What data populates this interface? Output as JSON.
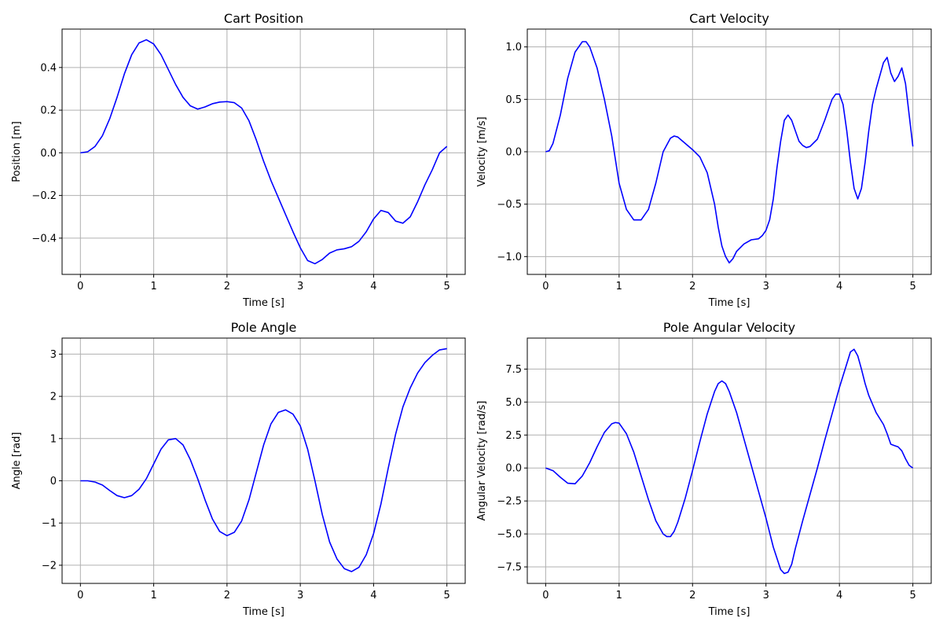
{
  "chart_data": [
    {
      "type": "line",
      "title": "Cart Position",
      "xlabel": "Time [s]",
      "ylabel": "Position [m]",
      "xlim": [
        -0.25,
        5.25
      ],
      "ylim": [
        -0.57,
        0.58
      ],
      "xticks": [
        0,
        1,
        2,
        3,
        4,
        5
      ],
      "xtick_labels": [
        "0",
        "1",
        "2",
        "3",
        "4",
        "5"
      ],
      "yticks": [
        -0.4,
        -0.2,
        0.0,
        0.2,
        0.4
      ],
      "ytick_labels": [
        "−0.4",
        "−0.2",
        "0.0",
        "0.2",
        "0.4"
      ],
      "grid": true,
      "color": "#0000ff",
      "x": [
        0,
        0.1,
        0.2,
        0.3,
        0.4,
        0.5,
        0.6,
        0.7,
        0.8,
        0.9,
        1.0,
        1.1,
        1.2,
        1.3,
        1.4,
        1.5,
        1.6,
        1.7,
        1.8,
        1.9,
        2.0,
        2.1,
        2.2,
        2.3,
        2.4,
        2.5,
        2.6,
        2.7,
        2.8,
        2.9,
        3.0,
        3.1,
        3.2,
        3.3,
        3.4,
        3.5,
        3.6,
        3.7,
        3.8,
        3.9,
        4.0,
        4.1,
        4.2,
        4.3,
        4.4,
        4.5,
        4.6,
        4.7,
        4.8,
        4.9,
        5.0
      ],
      "y": [
        0.0,
        0.005,
        0.03,
        0.08,
        0.16,
        0.26,
        0.37,
        0.46,
        0.515,
        0.53,
        0.51,
        0.46,
        0.39,
        0.32,
        0.26,
        0.22,
        0.205,
        0.215,
        0.23,
        0.238,
        0.24,
        0.235,
        0.21,
        0.15,
        0.06,
        -0.04,
        -0.13,
        -0.21,
        -0.29,
        -0.37,
        -0.445,
        -0.505,
        -0.52,
        -0.5,
        -0.47,
        -0.455,
        -0.45,
        -0.44,
        -0.415,
        -0.37,
        -0.31,
        -0.27,
        -0.28,
        -0.32,
        -0.33,
        -0.3,
        -0.23,
        -0.15,
        -0.08,
        0.0,
        0.03
      ]
    },
    {
      "type": "line",
      "title": "Cart Velocity",
      "xlabel": "Time [s]",
      "ylabel": "Velocity [m/s]",
      "xlim": [
        -0.25,
        5.25
      ],
      "ylim": [
        -1.17,
        1.17
      ],
      "xticks": [
        0,
        1,
        2,
        3,
        4,
        5
      ],
      "xtick_labels": [
        "0",
        "1",
        "2",
        "3",
        "4",
        "5"
      ],
      "yticks": [
        -1.0,
        -0.5,
        0.0,
        0.5,
        1.0
      ],
      "ytick_labels": [
        "−1.0",
        "−0.5",
        "0.0",
        "0.5",
        "1.0"
      ],
      "grid": true,
      "color": "#0000ff",
      "x": [
        0,
        0.05,
        0.1,
        0.2,
        0.3,
        0.4,
        0.5,
        0.55,
        0.6,
        0.7,
        0.8,
        0.9,
        1.0,
        1.1,
        1.2,
        1.3,
        1.4,
        1.5,
        1.6,
        1.7,
        1.75,
        1.8,
        1.9,
        2.0,
        2.1,
        2.2,
        2.3,
        2.35,
        2.4,
        2.45,
        2.5,
        2.55,
        2.6,
        2.7,
        2.8,
        2.9,
        2.95,
        3.0,
        3.05,
        3.1,
        3.15,
        3.2,
        3.25,
        3.3,
        3.35,
        3.4,
        3.45,
        3.5,
        3.55,
        3.6,
        3.7,
        3.8,
        3.9,
        3.95,
        4.0,
        4.05,
        4.1,
        4.15,
        4.2,
        4.25,
        4.3,
        4.35,
        4.4,
        4.45,
        4.5,
        4.6,
        4.65,
        4.7,
        4.75,
        4.8,
        4.85,
        4.9,
        4.95,
        5.0
      ],
      "y": [
        0.0,
        0.01,
        0.08,
        0.35,
        0.7,
        0.95,
        1.05,
        1.05,
        1.0,
        0.8,
        0.5,
        0.15,
        -0.3,
        -0.55,
        -0.65,
        -0.65,
        -0.55,
        -0.3,
        0.0,
        0.13,
        0.15,
        0.14,
        0.08,
        0.02,
        -0.05,
        -0.2,
        -0.5,
        -0.72,
        -0.9,
        -1.0,
        -1.06,
        -1.02,
        -0.95,
        -0.88,
        -0.84,
        -0.83,
        -0.8,
        -0.75,
        -0.65,
        -0.45,
        -0.15,
        0.1,
        0.3,
        0.35,
        0.3,
        0.2,
        0.1,
        0.06,
        0.04,
        0.05,
        0.12,
        0.3,
        0.5,
        0.55,
        0.55,
        0.45,
        0.2,
        -0.1,
        -0.35,
        -0.45,
        -0.35,
        -0.1,
        0.2,
        0.45,
        0.6,
        0.85,
        0.9,
        0.75,
        0.67,
        0.72,
        0.8,
        0.65,
        0.35,
        0.05
      ]
    },
    {
      "type": "line",
      "title": "Pole Angle",
      "xlabel": "Time [s]",
      "ylabel": "Angle [rad]",
      "xlim": [
        -0.25,
        5.25
      ],
      "ylim": [
        -2.43,
        3.38
      ],
      "xticks": [
        0,
        1,
        2,
        3,
        4,
        5
      ],
      "xtick_labels": [
        "0",
        "1",
        "2",
        "3",
        "4",
        "5"
      ],
      "yticks": [
        -2,
        -1,
        0,
        1,
        2,
        3
      ],
      "ytick_labels": [
        "−2",
        "−1",
        "0",
        "1",
        "2",
        "3"
      ],
      "grid": true,
      "color": "#0000ff",
      "x": [
        0,
        0.1,
        0.2,
        0.3,
        0.4,
        0.5,
        0.6,
        0.7,
        0.8,
        0.9,
        1.0,
        1.1,
        1.2,
        1.3,
        1.4,
        1.5,
        1.6,
        1.7,
        1.8,
        1.9,
        2.0,
        2.1,
        2.2,
        2.3,
        2.4,
        2.5,
        2.6,
        2.7,
        2.8,
        2.9,
        3.0,
        3.1,
        3.2,
        3.3,
        3.4,
        3.5,
        3.6,
        3.7,
        3.8,
        3.9,
        4.0,
        4.1,
        4.2,
        4.3,
        4.4,
        4.5,
        4.6,
        4.7,
        4.8,
        4.9,
        5.0
      ],
      "y": [
        0.0,
        0.0,
        -0.03,
        -0.1,
        -0.23,
        -0.35,
        -0.4,
        -0.35,
        -0.2,
        0.05,
        0.4,
        0.75,
        0.97,
        1.0,
        0.85,
        0.5,
        0.05,
        -0.45,
        -0.9,
        -1.2,
        -1.3,
        -1.22,
        -0.95,
        -0.45,
        0.2,
        0.85,
        1.35,
        1.62,
        1.68,
        1.58,
        1.3,
        0.75,
        0.0,
        -0.8,
        -1.45,
        -1.85,
        -2.08,
        -2.15,
        -2.05,
        -1.75,
        -1.25,
        -0.55,
        0.3,
        1.1,
        1.75,
        2.2,
        2.55,
        2.8,
        2.97,
        3.1,
        3.13
      ]
    },
    {
      "type": "line",
      "title": "Pole Angular Velocity",
      "xlabel": "Time [s]",
      "ylabel": "Angular Velocity [rad/s]",
      "xlim": [
        -0.25,
        5.25
      ],
      "ylim": [
        -8.75,
        9.85
      ],
      "xticks": [
        0,
        1,
        2,
        3,
        4,
        5
      ],
      "xtick_labels": [
        "0",
        "1",
        "2",
        "3",
        "4",
        "5"
      ],
      "yticks": [
        -7.5,
        -5.0,
        -2.5,
        0.0,
        2.5,
        5.0,
        7.5
      ],
      "ytick_labels": [
        "−7.5",
        "−5.0",
        "−2.5",
        "0.0",
        "2.5",
        "5.0",
        "7.5"
      ],
      "grid": true,
      "color": "#0000ff",
      "x": [
        0,
        0.1,
        0.2,
        0.3,
        0.4,
        0.5,
        0.6,
        0.7,
        0.8,
        0.9,
        0.95,
        1.0,
        1.1,
        1.2,
        1.3,
        1.4,
        1.5,
        1.6,
        1.65,
        1.7,
        1.75,
        1.8,
        1.9,
        2.0,
        2.1,
        2.2,
        2.3,
        2.35,
        2.4,
        2.45,
        2.5,
        2.6,
        2.7,
        2.8,
        2.9,
        3.0,
        3.1,
        3.2,
        3.25,
        3.3,
        3.35,
        3.4,
        3.5,
        3.6,
        3.7,
        3.8,
        3.9,
        4.0,
        4.1,
        4.15,
        4.2,
        4.25,
        4.3,
        4.35,
        4.4,
        4.5,
        4.6,
        4.65,
        4.7,
        4.75,
        4.8,
        4.85,
        4.9,
        4.95,
        5.0
      ],
      "y": [
        0.0,
        -0.2,
        -0.7,
        -1.15,
        -1.2,
        -0.6,
        0.4,
        1.6,
        2.7,
        3.35,
        3.45,
        3.4,
        2.6,
        1.2,
        -0.6,
        -2.4,
        -4.0,
        -5.0,
        -5.2,
        -5.2,
        -4.8,
        -4.1,
        -2.3,
        -0.2,
        2.0,
        4.1,
        5.8,
        6.4,
        6.6,
        6.4,
        5.8,
        4.2,
        2.2,
        0.2,
        -1.8,
        -3.8,
        -6.0,
        -7.7,
        -8.0,
        -7.9,
        -7.3,
        -6.1,
        -4.0,
        -2.0,
        0.0,
        2.1,
        4.1,
        6.1,
        7.9,
        8.8,
        9.0,
        8.5,
        7.5,
        6.4,
        5.5,
        4.2,
        3.3,
        2.6,
        1.8,
        1.7,
        1.6,
        1.3,
        0.7,
        0.2,
        0.0
      ]
    }
  ]
}
